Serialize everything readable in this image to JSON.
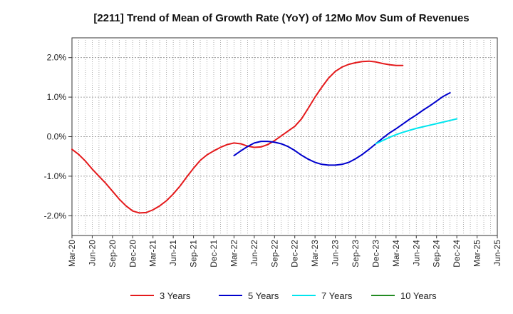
{
  "chart_data": {
    "type": "line",
    "title": "[2211]  Trend of Mean of Growth Rate (YoY) of 12Mo Mov Sum of Revenues",
    "xlabel": "",
    "ylabel": "",
    "ylim": [
      -2.5,
      2.5
    ],
    "grid": true,
    "legend_position": "bottom",
    "x_tick_labels": [
      "Mar-20",
      "Jun-20",
      "Sep-20",
      "Dec-20",
      "Mar-21",
      "Jun-21",
      "Sep-21",
      "Dec-21",
      "Mar-22",
      "Jun-22",
      "Sep-22",
      "Dec-22",
      "Mar-23",
      "Jun-23",
      "Sep-23",
      "Dec-23",
      "Mar-24",
      "Jun-24",
      "Sep-24",
      "Dec-24",
      "Mar-25",
      "Jun-25"
    ],
    "y_ticks": [
      {
        "value": 2,
        "label": "2.0%"
      },
      {
        "value": 1,
        "label": "1.0%"
      },
      {
        "value": 0,
        "label": "0.0%"
      },
      {
        "value": -1,
        "label": "-1.0%"
      },
      {
        "value": -2,
        "label": "-2.0%"
      }
    ],
    "series": [
      {
        "name": "3 Years",
        "color": "#e41a1c",
        "start_index": 0,
        "values": [
          -0.32,
          -0.45,
          -0.62,
          -0.82,
          -1.0,
          -1.18,
          -1.38,
          -1.58,
          -1.75,
          -1.88,
          -1.93,
          -1.92,
          -1.85,
          -1.75,
          -1.62,
          -1.45,
          -1.25,
          -1.02,
          -0.8,
          -0.6,
          -0.46,
          -0.36,
          -0.27,
          -0.2,
          -0.16,
          -0.18,
          -0.24,
          -0.27,
          -0.26,
          -0.2,
          -0.1,
          0.02,
          0.14,
          0.26,
          0.45,
          0.72,
          1.0,
          1.25,
          1.48,
          1.65,
          1.76,
          1.83,
          1.87,
          1.9,
          1.91,
          1.89,
          1.85,
          1.82,
          1.8,
          1.8
        ]
      },
      {
        "name": "5 Years",
        "color": "#0000cd",
        "start_index": 24,
        "values": [
          -0.48,
          -0.36,
          -0.25,
          -0.16,
          -0.12,
          -0.12,
          -0.14,
          -0.18,
          -0.25,
          -0.35,
          -0.47,
          -0.57,
          -0.65,
          -0.7,
          -0.72,
          -0.72,
          -0.7,
          -0.65,
          -0.56,
          -0.45,
          -0.32,
          -0.18,
          -0.04,
          0.09,
          0.2,
          0.32,
          0.44,
          0.55,
          0.67,
          0.78,
          0.9,
          1.02,
          1.11
        ]
      },
      {
        "name": "7 Years",
        "color": "#00e5ee",
        "start_index": 45,
        "values": [
          -0.18,
          -0.1,
          -0.02,
          0.05,
          0.11,
          0.16,
          0.21,
          0.25,
          0.29,
          0.33,
          0.37,
          0.41,
          0.45
        ]
      },
      {
        "name": "10 Years",
        "color": "#228b22",
        "start_index": 0,
        "values": []
      }
    ]
  }
}
